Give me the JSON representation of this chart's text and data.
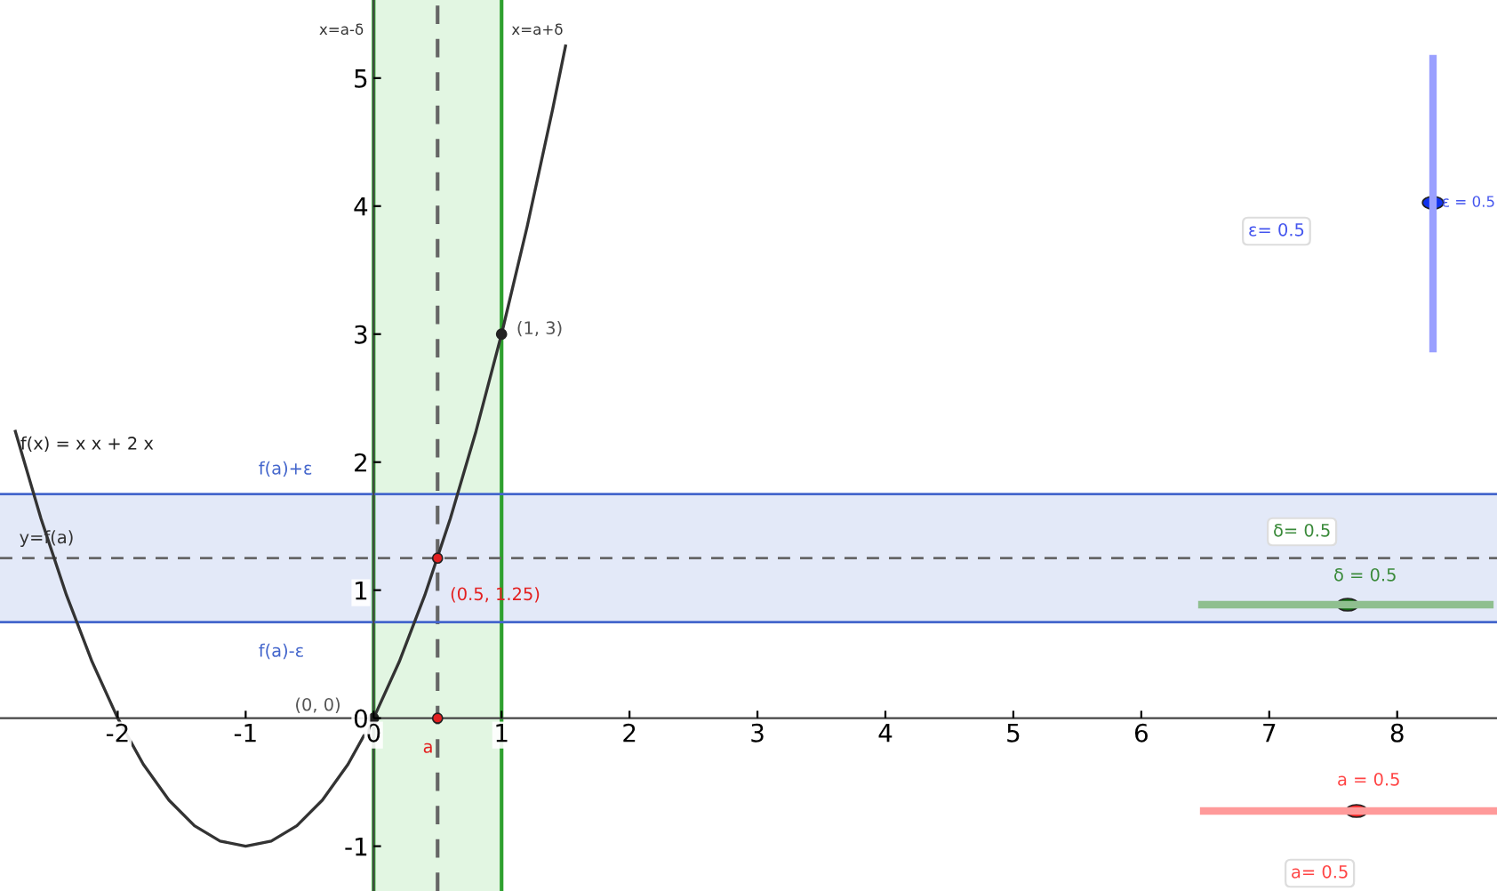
{
  "chart_data": {
    "type": "line",
    "xlim": [
      -2.92,
      8.78
    ],
    "ylim": [
      -1.35,
      5.61
    ],
    "xticks": [
      -2,
      -1,
      0,
      1,
      2,
      3,
      4,
      5,
      6,
      7,
      8
    ],
    "yticks": [
      -1,
      0,
      1,
      2,
      3,
      4,
      5
    ],
    "grid": false,
    "legend": false,
    "marker": "none",
    "line_style": "solid",
    "series": [
      {
        "name": "f(x) = x x + 2 x",
        "color": "#333333",
        "x": [
          -2.8,
          -2.6,
          -2.4,
          -2.2,
          -2,
          -1.8,
          -1.6,
          -1.4,
          -1.2,
          -1,
          -0.8,
          -0.6,
          -0.4,
          -0.2,
          0,
          0.2,
          0.4,
          0.6,
          0.8,
          1,
          1.2,
          1.4,
          1.5
        ],
        "values": [
          2.24,
          1.56,
          0.96,
          0.44,
          0,
          -0.36,
          -0.64,
          -0.84,
          -0.96,
          -1,
          -0.96,
          -0.84,
          -0.64,
          -0.36,
          0,
          0.44,
          0.96,
          1.56,
          2.24,
          3,
          3.84,
          4.76,
          5.25
        ]
      },
      {
        "type": "scatter",
        "marker": "circle",
        "x": [
          0,
          1,
          0.5,
          0.5
        ],
        "values": [
          0,
          3,
          1.25,
          0
        ],
        "colors": [
          "#222222",
          "#222222",
          "#e32020",
          "#e32020"
        ]
      }
    ],
    "ref_lines": [
      {
        "axis": "x",
        "value": 0,
        "label": "x=a-δ",
        "color": "#2ea02e",
        "line_style": "solid"
      },
      {
        "axis": "x",
        "value": 1,
        "label": "x=a+δ",
        "color": "#2ea02e",
        "line_style": "solid"
      },
      {
        "axis": "x",
        "value": 0.5,
        "color": "#666666",
        "line_style": "dashed"
      },
      {
        "axis": "y",
        "value": 1.25,
        "label": "y=f(a)",
        "color": "#666666",
        "line_style": "dashed"
      },
      {
        "axis": "y",
        "value": 1.75,
        "label": "f(a)+ε",
        "color": "#4466cc",
        "line_style": "solid"
      },
      {
        "axis": "y",
        "value": 0.75,
        "label": "f(a)-ε",
        "color": "#4466cc",
        "line_style": "solid"
      }
    ],
    "bands": [
      {
        "axis": "x",
        "from": 0,
        "to": 1,
        "color": "#e2f6e2"
      },
      {
        "axis": "y",
        "from": 0.75,
        "to": 1.75,
        "color": "#e3e9f8"
      }
    ],
    "annotations": [
      {
        "text": "(0, 0)",
        "x": 0,
        "y": 0
      },
      {
        "text": "(1, 3)",
        "x": 1,
        "y": 3
      },
      {
        "text": "(0.5, 1.25)",
        "x": 0.5,
        "y": 1.25
      },
      {
        "text": "a",
        "x": 0.5,
        "y": 0
      },
      "ε= 0.5",
      "ε = 0.5",
      "δ= 0.5",
      "δ = 0.5",
      "a = 0.5",
      "a= 0.5"
    ]
  }
}
